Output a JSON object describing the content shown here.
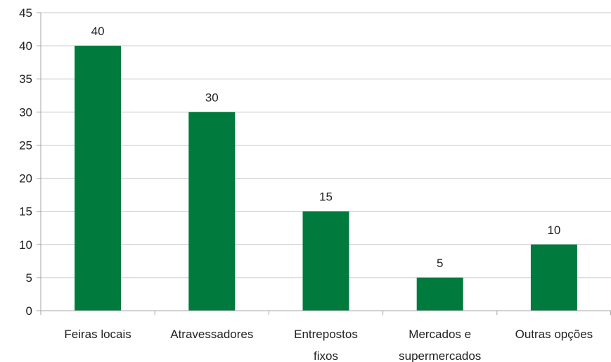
{
  "chart_data": {
    "type": "bar",
    "categories": [
      [
        "Feiras locais"
      ],
      [
        "Atravessadores"
      ],
      [
        "Entrepostos",
        "fixos"
      ],
      [
        "Mercados e",
        "supermercados"
      ],
      [
        "Outras opções"
      ]
    ],
    "values": [
      40,
      30,
      15,
      5,
      10
    ],
    "data_labels": [
      "40",
      "30",
      "15",
      "5",
      "10"
    ],
    "ylim": [
      0,
      45
    ],
    "yticks": [
      0,
      5,
      10,
      15,
      20,
      25,
      30,
      35,
      40,
      45
    ],
    "grid": true,
    "legend": "none",
    "bar_color": "#007a3d",
    "grid_color": "#c8c8c8",
    "axis_color": "#a6a6a6"
  }
}
